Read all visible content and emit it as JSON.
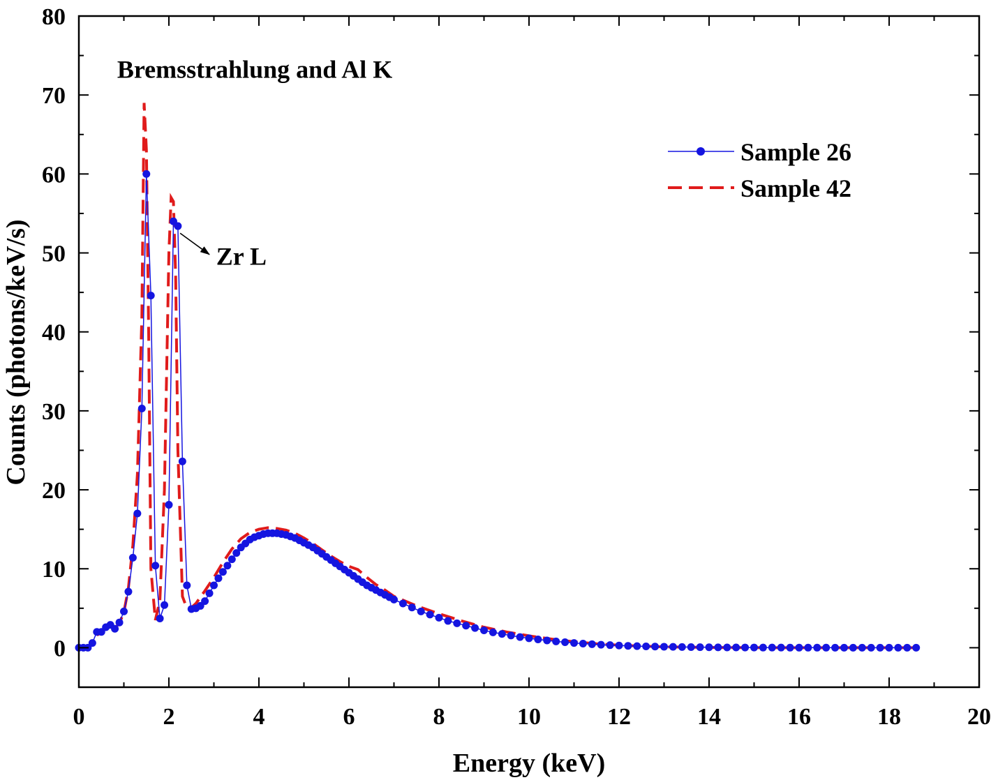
{
  "chart_data": {
    "type": "line",
    "title": "",
    "xlabel": "Energy (keV)",
    "ylabel": "Counts (photons/keV/s)",
    "xlim": [
      0,
      20
    ],
    "ylim": [
      -5,
      80
    ],
    "xticks": [
      0,
      2,
      4,
      6,
      8,
      10,
      12,
      14,
      16,
      18,
      20
    ],
    "yticks": [
      0,
      10,
      20,
      30,
      40,
      50,
      60,
      70,
      80
    ],
    "grid": false,
    "legend_position": "top-right",
    "annotations": [
      {
        "text": "Bremsstrahlung and Al K",
        "x": 0.85,
        "y": 72.2
      },
      {
        "text": "Zr L",
        "x": 3.05,
        "y": 48.5,
        "arrow_from": [
          2.25,
          52.5
        ],
        "arrow_to": [
          2.9,
          49.8
        ]
      }
    ],
    "colors": {
      "sample26": "#1515e0",
      "sample42": "#e01b1b"
    },
    "series": [
      {
        "name": "Sample 26",
        "style": "solid-with-markers",
        "x": [
          0.0,
          0.1,
          0.2,
          0.3,
          0.4,
          0.5,
          0.6,
          0.7,
          0.8,
          0.9,
          1.0,
          1.1,
          1.2,
          1.3,
          1.4,
          1.5,
          1.6,
          1.7,
          1.8,
          1.9,
          2.0,
          2.1,
          2.2,
          2.3,
          2.4,
          2.5,
          2.6,
          2.7,
          2.8,
          2.9,
          3.0,
          3.1,
          3.2,
          3.3,
          3.4,
          3.5,
          3.6,
          3.7,
          3.8,
          3.9,
          4.0,
          4.1,
          4.2,
          4.3,
          4.4,
          4.5,
          4.6,
          4.7,
          4.8,
          4.9,
          5.0,
          5.1,
          5.2,
          5.3,
          5.4,
          5.5,
          5.6,
          5.7,
          5.8,
          5.9,
          6.0,
          6.1,
          6.2,
          6.3,
          6.4,
          6.5,
          6.6,
          6.7,
          6.8,
          6.9,
          7.0,
          7.2,
          7.4,
          7.6,
          7.8,
          8.0,
          8.2,
          8.4,
          8.6,
          8.8,
          9.0,
          9.2,
          9.4,
          9.6,
          9.8,
          10.0,
          10.2,
          10.4,
          10.6,
          10.8,
          11.0,
          11.2,
          11.4,
          11.6,
          11.8,
          12.0,
          12.2,
          12.4,
          12.6,
          12.8,
          13.0,
          13.2,
          13.4,
          13.6,
          13.8,
          14.0,
          14.2,
          14.4,
          14.6,
          14.8,
          15.0,
          15.2,
          15.4,
          15.6,
          15.8,
          16.0,
          16.2,
          16.4,
          16.6,
          16.8,
          17.0,
          17.2,
          17.4,
          17.6,
          17.8,
          18.0,
          18.2,
          18.4,
          18.6
        ],
        "y": [
          0.0,
          0.0,
          0.0,
          0.6,
          2.0,
          2.0,
          2.6,
          2.9,
          2.4,
          3.2,
          4.6,
          7.1,
          11.4,
          17.0,
          30.3,
          60.0,
          44.6,
          10.4,
          3.7,
          5.4,
          18.1,
          54.0,
          53.4,
          23.6,
          7.9,
          4.9,
          5.0,
          5.3,
          5.9,
          6.9,
          7.9,
          8.8,
          9.6,
          10.4,
          11.2,
          12.0,
          12.7,
          13.2,
          13.7,
          14.0,
          14.2,
          14.4,
          14.5,
          14.5,
          14.5,
          14.4,
          14.3,
          14.1,
          13.9,
          13.6,
          13.3,
          13.0,
          12.7,
          12.3,
          11.9,
          11.5,
          11.1,
          10.7,
          10.3,
          9.9,
          9.5,
          9.1,
          8.7,
          8.3,
          7.9,
          7.6,
          7.3,
          7.0,
          6.7,
          6.4,
          6.1,
          5.6,
          5.1,
          4.6,
          4.2,
          3.8,
          3.4,
          3.1,
          2.8,
          2.5,
          2.2,
          1.95,
          1.75,
          1.55,
          1.35,
          1.2,
          1.05,
          0.92,
          0.8,
          0.7,
          0.6,
          0.52,
          0.45,
          0.38,
          0.33,
          0.28,
          0.24,
          0.2,
          0.17,
          0.15,
          0.13,
          0.11,
          0.09,
          0.08,
          0.07,
          0.06,
          0.05,
          0.04,
          0.04,
          0.03,
          0.03,
          0.02,
          0.02,
          0.02,
          0.01,
          0.01,
          0.01,
          0.01,
          0.01,
          0.0,
          0.0,
          0.0,
          0.0,
          0.0,
          0.0,
          0.0,
          0.0,
          0.0,
          0.0
        ]
      },
      {
        "name": "Sample 42",
        "style": "dashed",
        "x": [
          0.4,
          0.5,
          0.6,
          0.7,
          0.8,
          0.9,
          1.0,
          1.1,
          1.2,
          1.3,
          1.4,
          1.45,
          1.5,
          1.55,
          1.6,
          1.7,
          1.8,
          1.9,
          2.0,
          2.05,
          2.1,
          2.15,
          2.2,
          2.3,
          2.4,
          2.5,
          2.6,
          2.8,
          3.0,
          3.2,
          3.4,
          3.6,
          3.8,
          4.0,
          4.2,
          4.4,
          4.6,
          4.8,
          5.0,
          5.2,
          5.4,
          5.6,
          5.8,
          6.0,
          6.2,
          6.4,
          6.6,
          6.8,
          7.0,
          7.5,
          8.0,
          8.5,
          9.0,
          9.5,
          10.0,
          10.5,
          11.0,
          11.5,
          12.0,
          12.5,
          13.0,
          13.5,
          14.0,
          15.0,
          16.0,
          17.0,
          18.0,
          18.6
        ],
        "y": [
          1.6,
          1.9,
          2.5,
          2.8,
          2.5,
          3.1,
          4.5,
          7.5,
          13.0,
          22.0,
          42.0,
          69.0,
          63.0,
          40.0,
          10.0,
          3.5,
          6.0,
          20.0,
          50.0,
          57.0,
          56.5,
          47.0,
          25.0,
          6.5,
          5.0,
          5.1,
          5.6,
          7.2,
          8.9,
          10.8,
          12.5,
          13.8,
          14.6,
          15.0,
          15.2,
          15.1,
          14.9,
          14.5,
          13.9,
          13.2,
          12.4,
          11.6,
          10.9,
          10.3,
          9.9,
          8.9,
          8.0,
          7.3,
          6.5,
          5.3,
          4.3,
          3.4,
          2.6,
          2.0,
          1.5,
          1.1,
          0.75,
          0.5,
          0.32,
          0.2,
          0.12,
          0.07,
          0.04,
          0.01,
          0.0,
          0.0,
          0.0,
          0.0
        ]
      }
    ]
  }
}
